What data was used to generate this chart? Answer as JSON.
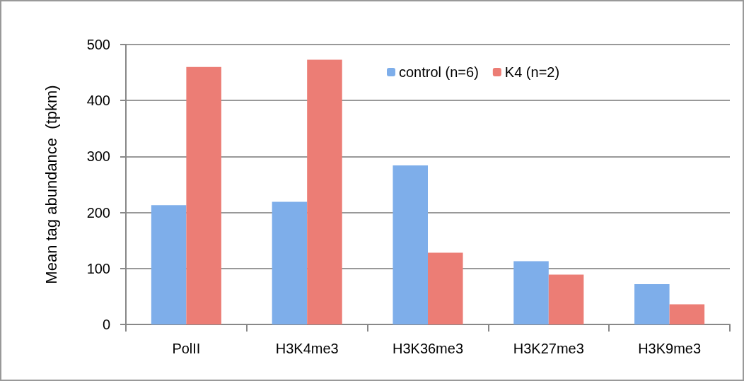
{
  "chart_data": {
    "type": "bar",
    "ylabel": "Mean tag abundance  (tpkm)",
    "categories": [
      "PolII",
      "H3K4me3",
      "H3K36me3",
      "H3K27me3",
      "H3K9me3"
    ],
    "series": [
      {
        "name": "control (n=6)",
        "color": "#7eaeea",
        "values": [
          213,
          219,
          284,
          113,
          72
        ]
      },
      {
        "name": "K4 (n=2)",
        "color": "#ec7d75",
        "values": [
          460,
          473,
          128,
          89,
          36
        ]
      }
    ],
    "ylim": [
      0,
      500
    ],
    "yticks": [
      0,
      100,
      200,
      300,
      400,
      500
    ],
    "grid": "y",
    "legend": "top right"
  }
}
